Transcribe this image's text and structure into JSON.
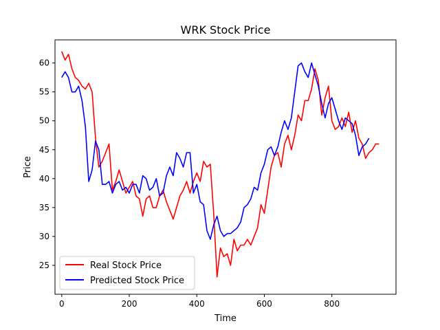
{
  "chart_data": {
    "type": "line",
    "title": "WRK Stock Price",
    "xlabel": "Time",
    "ylabel": "Price",
    "xlim": [
      -20,
      990
    ],
    "ylim": [
      20,
      64
    ],
    "xticks": [
      0,
      200,
      400,
      600,
      800
    ],
    "yticks": [
      25,
      30,
      35,
      40,
      45,
      50,
      55,
      60
    ],
    "grid": false,
    "legend_position": "lower-left",
    "series": [
      {
        "name": "Real Stock Price",
        "color": "#ff0000",
        "x": [
          0,
          10,
          20,
          30,
          40,
          50,
          60,
          70,
          80,
          90,
          100,
          110,
          120,
          130,
          140,
          150,
          160,
          170,
          180,
          190,
          200,
          210,
          220,
          230,
          240,
          250,
          260,
          270,
          280,
          290,
          300,
          310,
          320,
          330,
          340,
          350,
          360,
          370,
          380,
          390,
          400,
          410,
          420,
          430,
          440,
          450,
          460,
          470,
          480,
          490,
          500,
          510,
          520,
          530,
          540,
          550,
          560,
          570,
          580,
          590,
          600,
          610,
          620,
          630,
          640,
          650,
          660,
          670,
          680,
          690,
          700,
          710,
          720,
          730,
          740,
          750,
          760,
          770,
          780,
          790,
          800,
          810,
          820,
          830,
          840,
          850,
          860,
          870,
          880,
          890,
          900,
          910,
          920,
          930,
          940
        ],
        "values": [
          62,
          60.5,
          61.5,
          59,
          57.5,
          57,
          56,
          55.5,
          56.5,
          55,
          47,
          42,
          43,
          44.5,
          46,
          38,
          39.5,
          41.5,
          39.5,
          37.5,
          38.5,
          39.5,
          37,
          36.5,
          33.5,
          36.5,
          37,
          35,
          35,
          37,
          38,
          36,
          34.5,
          33,
          35,
          37,
          38,
          39.5,
          37.5,
          39.5,
          41,
          39.5,
          43,
          42,
          42.5,
          34,
          23,
          28,
          26.5,
          27,
          25,
          29.5,
          27.5,
          28.5,
          28.5,
          29.5,
          28.5,
          30,
          31.5,
          35.5,
          34,
          38,
          42,
          44,
          44.5,
          42,
          46,
          47.5,
          45,
          47.5,
          51,
          50,
          53.5,
          53.5,
          55.5,
          59,
          57,
          51,
          54,
          56,
          50,
          48.5,
          49,
          50.5,
          49,
          51.5,
          48,
          50,
          47,
          46,
          43.5,
          44.5,
          45,
          46,
          46
        ]
      },
      {
        "name": "Predicted Stock Price",
        "color": "#0000ff",
        "x": [
          0,
          10,
          20,
          30,
          40,
          50,
          60,
          70,
          80,
          90,
          100,
          110,
          120,
          130,
          140,
          150,
          160,
          170,
          180,
          190,
          200,
          210,
          220,
          230,
          240,
          250,
          260,
          270,
          280,
          290,
          300,
          310,
          320,
          330,
          340,
          350,
          360,
          370,
          380,
          390,
          400,
          410,
          420,
          430,
          440,
          450,
          460,
          470,
          480,
          490,
          500,
          510,
          520,
          530,
          540,
          550,
          560,
          570,
          580,
          590,
          600,
          610,
          620,
          630,
          640,
          650,
          660,
          670,
          680,
          690,
          700,
          710,
          720,
          730,
          740,
          750,
          760,
          770,
          780,
          790,
          800,
          810,
          820,
          830,
          840,
          850,
          860,
          870,
          880,
          890,
          900,
          910
        ],
        "values": [
          57.5,
          58.5,
          57.5,
          55,
          55,
          56,
          53.5,
          49,
          39.5,
          41.5,
          46.5,
          45,
          39,
          39,
          39.5,
          37.5,
          39,
          39.5,
          38,
          38.5,
          37.5,
          39,
          39,
          37.5,
          40.5,
          40,
          38,
          38.5,
          40,
          37,
          37.5,
          40.5,
          42,
          40.5,
          44.5,
          43.5,
          42,
          44.5,
          44.5,
          37.5,
          39,
          36,
          35.5,
          31,
          29.5,
          32,
          33.5,
          31,
          30,
          30.5,
          30.5,
          31,
          31.5,
          32.5,
          35,
          35.5,
          36.5,
          38.5,
          38,
          41,
          42.5,
          45,
          45.5,
          44,
          45.5,
          48,
          50,
          48.5,
          50.5,
          55,
          59.5,
          60,
          58.5,
          57.5,
          60,
          58,
          56,
          53,
          50.5,
          53,
          54,
          52,
          50,
          48.5,
          50.5,
          50,
          49.5,
          47.5,
          44,
          45.5,
          46,
          47
        ]
      }
    ]
  }
}
